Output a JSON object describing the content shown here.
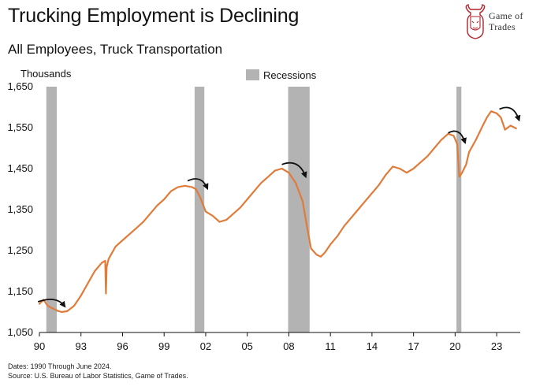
{
  "header": {
    "title": "Trucking Employment is Declining",
    "subtitle": "All Employees, Truck Transportation"
  },
  "logo": {
    "line1": "Game of",
    "line2": "Trades",
    "icon": "bull-icon"
  },
  "footer": {
    "dates": "Dates: 1990 Through June 2024.",
    "source": "Source: U.S. Bureau of Labor Statistics, Game of Trades."
  },
  "chart_data": {
    "type": "line",
    "title": "Trucking Employment is Declining",
    "subtitle": "All Employees, Truck Transportation",
    "ylabel": "Thousands",
    "xlabel": "",
    "xlim": [
      1990,
      2024.7
    ],
    "ylim": [
      1050,
      1650
    ],
    "y_ticks": [
      1050,
      1150,
      1250,
      1350,
      1450,
      1550,
      1650
    ],
    "y_tick_labels": [
      "1,050",
      "1,150",
      "1,250",
      "1,350",
      "1,450",
      "1,550",
      "1,650"
    ],
    "x_ticks": [
      1990,
      1993,
      1996,
      1999,
      2002,
      2005,
      2008,
      2011,
      2014,
      2017,
      2020,
      2023
    ],
    "x_tick_labels": [
      "90",
      "93",
      "96",
      "99",
      "02",
      "05",
      "08",
      "11",
      "14",
      "17",
      "20",
      "23"
    ],
    "legend": {
      "label": "Recessions",
      "color": "#b3b3b3",
      "position": "top-center"
    },
    "grid": false,
    "recessions": [
      {
        "start": 1990.5,
        "end": 1991.25
      },
      {
        "start": 2001.2,
        "end": 2001.9
      },
      {
        "start": 2007.95,
        "end": 2009.5
      },
      {
        "start": 2020.1,
        "end": 2020.45
      }
    ],
    "series": [
      {
        "name": "All Employees, Truck Transportation",
        "color": "#e07b39",
        "x": [
          1990.0,
          1990.3,
          1990.6,
          1991.0,
          1991.3,
          1991.6,
          1992.0,
          1992.5,
          1993.0,
          1993.5,
          1994.0,
          1994.5,
          1994.75,
          1994.8,
          1994.85,
          1995.0,
          1995.5,
          1996.0,
          1996.5,
          1997.0,
          1997.5,
          1998.0,
          1998.5,
          1999.0,
          1999.5,
          2000.0,
          2000.5,
          2001.0,
          2001.3,
          2001.6,
          2002.0,
          2002.5,
          2003.0,
          2003.5,
          2004.0,
          2004.5,
          2005.0,
          2005.5,
          2006.0,
          2006.5,
          2007.0,
          2007.5,
          2008.0,
          2008.5,
          2009.0,
          2009.3,
          2009.6,
          2010.0,
          2010.3,
          2010.6,
          2011.0,
          2011.5,
          2012.0,
          2012.5,
          2013.0,
          2013.5,
          2014.0,
          2014.5,
          2015.0,
          2015.5,
          2016.0,
          2016.5,
          2017.0,
          2017.5,
          2018.0,
          2018.5,
          2019.0,
          2019.5,
          2019.9,
          2020.15,
          2020.3,
          2020.5,
          2020.8,
          2021.0,
          2021.5,
          2022.0,
          2022.3,
          2022.6,
          2023.0,
          2023.3,
          2023.6,
          2024.0,
          2024.4
        ],
        "values": [
          1120,
          1130,
          1115,
          1108,
          1103,
          1100,
          1102,
          1115,
          1140,
          1170,
          1200,
          1220,
          1225,
          1145,
          1210,
          1230,
          1260,
          1275,
          1290,
          1305,
          1320,
          1340,
          1360,
          1375,
          1395,
          1405,
          1408,
          1405,
          1400,
          1380,
          1345,
          1335,
          1320,
          1325,
          1340,
          1355,
          1375,
          1395,
          1415,
          1430,
          1445,
          1450,
          1440,
          1415,
          1370,
          1310,
          1255,
          1240,
          1235,
          1245,
          1265,
          1285,
          1310,
          1330,
          1350,
          1370,
          1390,
          1410,
          1435,
          1455,
          1450,
          1440,
          1450,
          1465,
          1480,
          1500,
          1520,
          1535,
          1530,
          1510,
          1430,
          1440,
          1460,
          1490,
          1520,
          1555,
          1575,
          1590,
          1585,
          1575,
          1545,
          1555,
          1548
        ]
      }
    ],
    "arrows": [
      {
        "from": [
          1989.9,
          1125
        ],
        "to": [
          1991.8,
          1115
        ]
      },
      {
        "from": [
          2000.7,
          1420
        ],
        "to": [
          2002.1,
          1403
        ]
      },
      {
        "from": [
          2007.5,
          1460
        ],
        "to": [
          2009.2,
          1432
        ]
      },
      {
        "from": [
          2019.5,
          1537
        ],
        "to": [
          2020.7,
          1515
        ]
      },
      {
        "from": [
          2023.2,
          1595
        ],
        "to": [
          2024.6,
          1570
        ]
      }
    ]
  }
}
